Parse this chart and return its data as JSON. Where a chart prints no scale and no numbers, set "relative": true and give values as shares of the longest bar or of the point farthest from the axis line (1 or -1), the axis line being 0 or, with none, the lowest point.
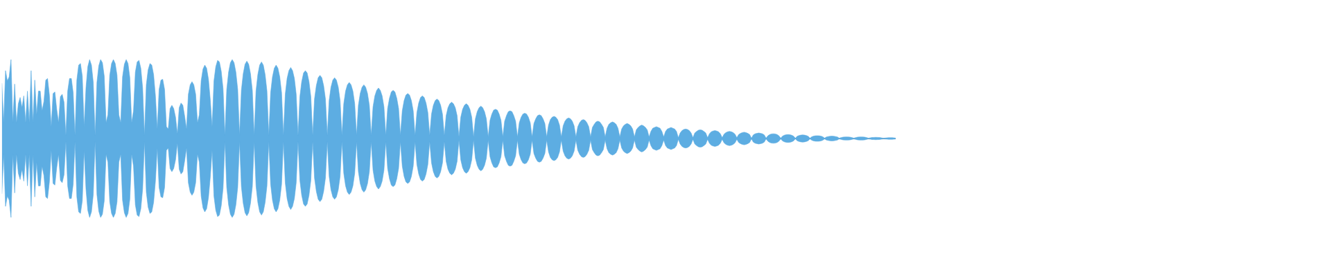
{
  "chart_data": {
    "type": "area",
    "relative": true,
    "categories": [
      null,
      null,
      null,
      null,
      null,
      null,
      null,
      null,
      null,
      null,
      null,
      null,
      null,
      null,
      null,
      null,
      null,
      null,
      null,
      null,
      null,
      null,
      null,
      null,
      null,
      null,
      null,
      null,
      null,
      null,
      null,
      null,
      null,
      null,
      null,
      null,
      null,
      null,
      null,
      null,
      null,
      null,
      null,
      null,
      null,
      null,
      null,
      null,
      null,
      null,
      null,
      null,
      null,
      null,
      null,
      null,
      null,
      null,
      null,
      null,
      null,
      null,
      null,
      null,
      null,
      null,
      null,
      null,
      null,
      null,
      null,
      null,
      null,
      null,
      null,
      null,
      null,
      null,
      null,
      null,
      null,
      null,
      null,
      null,
      null,
      null,
      null,
      null,
      null,
      null,
      null,
      null,
      null,
      null,
      null,
      null,
      null,
      null,
      null,
      null,
      null,
      null,
      null,
      null,
      null,
      null,
      null,
      null,
      null,
      null,
      null,
      null,
      null,
      null,
      null,
      null,
      null,
      null,
      null,
      null,
      null,
      null,
      null,
      null,
      null,
      null,
      null,
      null,
      null,
      null,
      null,
      null,
      null,
      null,
      null,
      null,
      null,
      null,
      null,
      null,
      null,
      null,
      null,
      null,
      null,
      null,
      null,
      null,
      null,
      null,
      null,
      null,
      null,
      null,
      null,
      null,
      null,
      null,
      null,
      null,
      null,
      null,
      null,
      null,
      null,
      null,
      null,
      null,
      null,
      null,
      null,
      null,
      null,
      null,
      null,
      null,
      null,
      null,
      null,
      null,
      null,
      null,
      null,
      null,
      null,
      null,
      null,
      null,
      null,
      null,
      null,
      null,
      null,
      null,
      null,
      null,
      null,
      null,
      null,
      null,
      null,
      null,
      null,
      null,
      null,
      null,
      null,
      null,
      null,
      null,
      null,
      null,
      null,
      null,
      null,
      null,
      null,
      null,
      null,
      null,
      null,
      null,
      null,
      null,
      null,
      null,
      null,
      null,
      null,
      null,
      null,
      null,
      null,
      null,
      null,
      null,
      null,
      null,
      null,
      null,
      null,
      null,
      null,
      null,
      null,
      null,
      null,
      null,
      null,
      null,
      null,
      null,
      null,
      null,
      null,
      null,
      null,
      null,
      null,
      null,
      null,
      null,
      null,
      null,
      null,
      null,
      null,
      null,
      null,
      null,
      null,
      null,
      null,
      null,
      null,
      null,
      null,
      null,
      null,
      null,
      null,
      null,
      null,
      null,
      null,
      null,
      null,
      null,
      null,
      null,
      null,
      null,
      null,
      null,
      null,
      null,
      null,
      null,
      null,
      null,
      null,
      null,
      null,
      null,
      null,
      null,
      null,
      null,
      null,
      null,
      null,
      null,
      null,
      null,
      null,
      null,
      null,
      null,
      null,
      null,
      null,
      null,
      null,
      null,
      null,
      null,
      null,
      null,
      null,
      null,
      null,
      null,
      null,
      null,
      null,
      null,
      null,
      null,
      null,
      null,
      null,
      null,
      null,
      null,
      null,
      null,
      null,
      null,
      null,
      null,
      null,
      null,
      null,
      null,
      null,
      null,
      null,
      null,
      null,
      null,
      null,
      null,
      null,
      null,
      null,
      null,
      null,
      null,
      null,
      null,
      null,
      null,
      null,
      null,
      null,
      null,
      null,
      null,
      null,
      null,
      null,
      null,
      null,
      null,
      null,
      null,
      null,
      null,
      null,
      null,
      null,
      null,
      null,
      null,
      null,
      null,
      null,
      null,
      null,
      null,
      null,
      null,
      null,
      null,
      null,
      null,
      null,
      null,
      null,
      null,
      null,
      null,
      null,
      null,
      null,
      null,
      null,
      null,
      null,
      null,
      null,
      null,
      null,
      null,
      null,
      null,
      null,
      null,
      null,
      null,
      null,
      null,
      null,
      null,
      null,
      null,
      null,
      null,
      null,
      null,
      null,
      null,
      null,
      null,
      null,
      null,
      null,
      null,
      null,
      null,
      null,
      null,
      null,
      null,
      null,
      null,
      null,
      null,
      null,
      null,
      null,
      null,
      null,
      null,
      null,
      null,
      null,
      null,
      null,
      null,
      null,
      null,
      null,
      null,
      null,
      null,
      null,
      null,
      null,
      null,
      null,
      null,
      null,
      null,
      null,
      null,
      null,
      null,
      null,
      null
    ],
    "series": [
      {
        "color": "#5dade2",
        "values": [
          0.7,
          0.2,
          0.86,
          0.73,
          0.78,
          1.0,
          0.2,
          0.69,
          0.2,
          0.44,
          0.52,
          0.39,
          0.54,
          0.2,
          0.6,
          0.2,
          0.86,
          0.2,
          0.74,
          0.3,
          0.6,
          0.6,
          0.35,
          0.47,
          0.74,
          0.76,
          0.55,
          0.15,
          0.57,
          0.59,
          0.37,
          0.2,
          0.53,
          0.56,
          0.46,
          0.04,
          0.6,
          0.76,
          0.76,
          0.58,
          0.04,
          0.74,
          0.93,
          0.95,
          0.79,
          0.15,
          0.64,
          0.91,
          1.0,
          0.93,
          0.71,
          0.04,
          0.71,
          0.92,
          1.0,
          0.96,
          0.79,
          0.2,
          0.3,
          0.8,
          0.95,
          1.0,
          0.95,
          0.8,
          0.3,
          0.2,
          0.78,
          0.94,
          1.0,
          0.95,
          0.77,
          0.2,
          0.35,
          0.84,
          0.97,
          0.99,
          0.89,
          0.64,
          0.04,
          0.68,
          0.87,
          0.95,
          0.93,
          0.81,
          0.54,
          0.12,
          0.62,
          0.74,
          0.75,
          0.62,
          0.15,
          0.12,
          0.38,
          0.42,
          0.38,
          0.27,
          0.06,
          0.39,
          0.45,
          0.42,
          0.28,
          0.12,
          0.56,
          0.68,
          0.72,
          0.68,
          0.56,
          0.2,
          0.3,
          0.73,
          0.88,
          0.93,
          0.89,
          0.75,
          0.49,
          0.15,
          0.73,
          0.91,
          0.99,
          0.97,
          0.85,
          0.63,
          0.04,
          0.62,
          0.84,
          0.96,
          1.0,
          0.96,
          0.84,
          0.62,
          0.04,
          0.61,
          0.82,
          0.94,
          0.98,
          0.94,
          0.82,
          0.61,
          0.04,
          0.6,
          0.81,
          0.93,
          0.97,
          0.93,
          0.81,
          0.6,
          0.04,
          0.58,
          0.78,
          0.89,
          0.93,
          0.89,
          0.78,
          0.58,
          0.04,
          0.56,
          0.76,
          0.86,
          0.9,
          0.86,
          0.76,
          0.56,
          0.04,
          0.53,
          0.72,
          0.83,
          0.86,
          0.83,
          0.72,
          0.53,
          0.04,
          0.5,
          0.67,
          0.77,
          0.8,
          0.77,
          0.67,
          0.5,
          0.04,
          0.48,
          0.65,
          0.74,
          0.77,
          0.74,
          0.65,
          0.48,
          0.04,
          0.44,
          0.6,
          0.68,
          0.71,
          0.68,
          0.6,
          0.44,
          0.04,
          0.42,
          0.57,
          0.65,
          0.68,
          0.65,
          0.57,
          0.42,
          0.04,
          0.4,
          0.54,
          0.61,
          0.64,
          0.61,
          0.54,
          0.4,
          0.04,
          0.38,
          0.51,
          0.59,
          0.61,
          0.59,
          0.51,
          0.38,
          0.04,
          0.35,
          0.48,
          0.55,
          0.57,
          0.55,
          0.48,
          0.35,
          0.04,
          0.33,
          0.45,
          0.52,
          0.54,
          0.52,
          0.45,
          0.33,
          0.04,
          0.31,
          0.42,
          0.48,
          0.5,
          0.48,
          0.42,
          0.31,
          0.04,
          0.29,
          0.39,
          0.44,
          0.46,
          0.44,
          0.39,
          0.29,
          0.02,
          0.27,
          0.37,
          0.42,
          0.44,
          0.42,
          0.37,
          0.27,
          0.02,
          0.25,
          0.34,
          0.39,
          0.41,
          0.39,
          0.34,
          0.25,
          0.02,
          0.23,
          0.31,
          0.36,
          0.37,
          0.36,
          0.31,
          0.23,
          0.02,
          0.22,
          0.29,
          0.34,
          0.35,
          0.34,
          0.29,
          0.22,
          0.02,
          0.2,
          0.27,
          0.31,
          0.32,
          0.31,
          0.27,
          0.2,
          0.02,
          0.19,
          0.25,
          0.29,
          0.3,
          0.29,
          0.25,
          0.19,
          0.02,
          0.17,
          0.24,
          0.27,
          0.28,
          0.27,
          0.24,
          0.17,
          0.02,
          0.16,
          0.22,
          0.25,
          0.26,
          0.25,
          0.22,
          0.16,
          0.02,
          0.15,
          0.2,
          0.23,
          0.24,
          0.23,
          0.2,
          0.15,
          0.02,
          0.14,
          0.18,
          0.21,
          0.22,
          0.21,
          0.18,
          0.14,
          0.02,
          0.13,
          0.18,
          0.2,
          0.21,
          0.2,
          0.18,
          0.13,
          0.02,
          0.12,
          0.16,
          0.18,
          0.19,
          0.18,
          0.16,
          0.12,
          0.02,
          0.11,
          0.14,
          0.16,
          0.17,
          0.16,
          0.14,
          0.11,
          0.02,
          0.09,
          0.13,
          0.14,
          0.15,
          0.14,
          0.13,
          0.09,
          0.02,
          0.09,
          0.12,
          0.13,
          0.14,
          0.13,
          0.12,
          0.09,
          0.01,
          0.07,
          0.1,
          0.115,
          0.12,
          0.115,
          0.1,
          0.07,
          0.01,
          0.07,
          0.09,
          0.105,
          0.11,
          0.105,
          0.09,
          0.07,
          0.01,
          0.06,
          0.085,
          0.095,
          0.1,
          0.095,
          0.085,
          0.06,
          0.01,
          0.055,
          0.075,
          0.085,
          0.09,
          0.085,
          0.075,
          0.055,
          0.01,
          0.05,
          0.065,
          0.075,
          0.08,
          0.075,
          0.065,
          0.05,
          0.005,
          0.045,
          0.06,
          0.065,
          0.07,
          0.065,
          0.06,
          0.045,
          0.005,
          0.035,
          0.05,
          0.058,
          0.06,
          0.058,
          0.05,
          0.035,
          0.005,
          0.03,
          0.042,
          0.048,
          0.05,
          0.048,
          0.042,
          0.03,
          0.005,
          0.028,
          0.038,
          0.043,
          0.045,
          0.043,
          0.038,
          0.028,
          0.005,
          0.022,
          0.03,
          0.034,
          0.035,
          0.034,
          0.03,
          0.022,
          0.005,
          0.019,
          0.025,
          0.029,
          0.03,
          0.029,
          0.025,
          0.019,
          0.005,
          0.012,
          0.017,
          0.019,
          0.02,
          0.019,
          0.017,
          0.012,
          0.005,
          0.012,
          0.017,
          0.019,
          0.02,
          0.019,
          0.017,
          0.012,
          0.005,
          0.009,
          0.013,
          0.014,
          0.015,
          0.014,
          0.013,
          0.009,
          0.005,
          0.006,
          0.008,
          0.01,
          0.01,
          0.01,
          0.008,
          0.005
        ]
      },
      {
        "color": "#5dade2",
        "values": [
          -0.7,
          -0.2,
          -0.86,
          -0.73,
          -0.78,
          -1.0,
          -0.2,
          -0.69,
          -0.2,
          -0.44,
          -0.52,
          -0.39,
          -0.54,
          -0.2,
          -0.6,
          -0.2,
          -0.86,
          -0.2,
          -0.74,
          -0.3,
          -0.6,
          -0.6,
          -0.35,
          -0.47,
          -0.74,
          -0.76,
          -0.55,
          -0.15,
          -0.57,
          -0.59,
          -0.37,
          -0.2,
          -0.53,
          -0.56,
          -0.46,
          -0.04,
          -0.6,
          -0.76,
          -0.76,
          -0.58,
          -0.04,
          -0.74,
          -0.93,
          -0.95,
          -0.79,
          -0.15,
          -0.64,
          -0.91,
          -1.0,
          -0.93,
          -0.71,
          -0.04,
          -0.71,
          -0.92,
          -1.0,
          -0.96,
          -0.79,
          -0.2,
          -0.3,
          -0.8,
          -0.95,
          -1.0,
          -0.95,
          -0.8,
          -0.3,
          -0.2,
          -0.78,
          -0.94,
          -1.0,
          -0.95,
          -0.77,
          -0.2,
          -0.35,
          -0.84,
          -0.97,
          -0.99,
          -0.89,
          -0.64,
          -0.04,
          -0.68,
          -0.87,
          -0.95,
          -0.93,
          -0.81,
          -0.54,
          -0.12,
          -0.62,
          -0.74,
          -0.75,
          -0.62,
          -0.15,
          -0.12,
          -0.38,
          -0.42,
          -0.38,
          -0.27,
          -0.06,
          -0.39,
          -0.45,
          -0.42,
          -0.28,
          -0.12,
          -0.56,
          -0.68,
          -0.72,
          -0.68,
          -0.56,
          -0.2,
          -0.3,
          -0.73,
          -0.88,
          -0.93,
          -0.89,
          -0.75,
          -0.49,
          -0.15,
          -0.73,
          -0.91,
          -0.99,
          -0.97,
          -0.85,
          -0.63,
          -0.04,
          -0.62,
          -0.84,
          -0.96,
          -1.0,
          -0.96,
          -0.84,
          -0.62,
          -0.04,
          -0.61,
          -0.82,
          -0.94,
          -0.98,
          -0.94,
          -0.82,
          -0.61,
          -0.04,
          -0.6,
          -0.81,
          -0.93,
          -0.97,
          -0.93,
          -0.81,
          -0.6,
          -0.04,
          -0.58,
          -0.78,
          -0.89,
          -0.93,
          -0.89,
          -0.78,
          -0.58,
          -0.04,
          -0.56,
          -0.76,
          -0.86,
          -0.9,
          -0.86,
          -0.76,
          -0.56,
          -0.04,
          -0.53,
          -0.72,
          -0.83,
          -0.86,
          -0.83,
          -0.72,
          -0.53,
          -0.04,
          -0.5,
          -0.67,
          -0.77,
          -0.8,
          -0.77,
          -0.67,
          -0.5,
          -0.04,
          -0.48,
          -0.65,
          -0.74,
          -0.77,
          -0.74,
          -0.65,
          -0.48,
          -0.04,
          -0.44,
          -0.6,
          -0.68,
          -0.71,
          -0.68,
          -0.6,
          -0.44,
          -0.04,
          -0.42,
          -0.57,
          -0.65,
          -0.68,
          -0.65,
          -0.57,
          -0.42,
          -0.04,
          -0.4,
          -0.54,
          -0.61,
          -0.64,
          -0.61,
          -0.54,
          -0.4,
          -0.04,
          -0.38,
          -0.51,
          -0.59,
          -0.61,
          -0.59,
          -0.51,
          -0.38,
          -0.04,
          -0.35,
          -0.48,
          -0.55,
          -0.57,
          -0.55,
          -0.48,
          -0.35,
          -0.04,
          -0.33,
          -0.45,
          -0.52,
          -0.54,
          -0.52,
          -0.45,
          -0.33,
          -0.04,
          -0.31,
          -0.42,
          -0.48,
          -0.5,
          -0.48,
          -0.42,
          -0.31,
          -0.04,
          -0.29,
          -0.39,
          -0.44,
          -0.46,
          -0.44,
          -0.39,
          -0.29,
          -0.02,
          -0.27,
          -0.37,
          -0.42,
          -0.44,
          -0.42,
          -0.37,
          -0.27,
          -0.02,
          -0.25,
          -0.34,
          -0.39,
          -0.41,
          -0.39,
          -0.34,
          -0.25,
          -0.02,
          -0.23,
          -0.31,
          -0.36,
          -0.37,
          -0.36,
          -0.31,
          -0.23,
          -0.02,
          -0.22,
          -0.29,
          -0.34,
          -0.35,
          -0.34,
          -0.29,
          -0.22,
          -0.02,
          -0.2,
          -0.27,
          -0.31,
          -0.32,
          -0.31,
          -0.27,
          -0.2,
          -0.02,
          -0.19,
          -0.25,
          -0.29,
          -0.3,
          -0.29,
          -0.25,
          -0.19,
          -0.02,
          -0.17,
          -0.24,
          -0.27,
          -0.28,
          -0.27,
          -0.24,
          -0.17,
          -0.02,
          -0.16,
          -0.22,
          -0.25,
          -0.26,
          -0.25,
          -0.22,
          -0.16,
          -0.02,
          -0.15,
          -0.2,
          -0.23,
          -0.24,
          -0.23,
          -0.2,
          -0.15,
          -0.02,
          -0.14,
          -0.18,
          -0.21,
          -0.22,
          -0.21,
          -0.18,
          -0.14,
          -0.02,
          -0.13,
          -0.18,
          -0.2,
          -0.21,
          -0.2,
          -0.18,
          -0.13,
          -0.02,
          -0.12,
          -0.16,
          -0.18,
          -0.19,
          -0.18,
          -0.16,
          -0.12,
          -0.02,
          -0.11,
          -0.14,
          -0.16,
          -0.17,
          -0.16,
          -0.14,
          -0.11,
          -0.02,
          -0.09,
          -0.13,
          -0.14,
          -0.15,
          -0.14,
          -0.13,
          -0.09,
          -0.02,
          -0.09,
          -0.12,
          -0.13,
          -0.14,
          -0.13,
          -0.12,
          -0.09,
          -0.01,
          -0.07,
          -0.1,
          -0.115,
          -0.12,
          -0.115,
          -0.1,
          -0.07,
          -0.01,
          -0.07,
          -0.09,
          -0.105,
          -0.11,
          -0.105,
          -0.09,
          -0.07,
          -0.01,
          -0.06,
          -0.085,
          -0.095,
          -0.1,
          -0.095,
          -0.085,
          -0.06,
          -0.01,
          -0.055,
          -0.075,
          -0.085,
          -0.09,
          -0.085,
          -0.075,
          -0.055,
          -0.01,
          -0.05,
          -0.065,
          -0.075,
          -0.08,
          -0.075,
          -0.065,
          -0.05,
          -0.005,
          -0.045,
          -0.06,
          -0.065,
          -0.07,
          -0.065,
          -0.06,
          -0.045,
          -0.005,
          -0.035,
          -0.05,
          -0.058,
          -0.06,
          -0.058,
          -0.05,
          -0.035,
          -0.005,
          -0.03,
          -0.042,
          -0.048,
          -0.05,
          -0.048,
          -0.042,
          -0.03,
          -0.005,
          -0.028,
          -0.038,
          -0.043,
          -0.045,
          -0.043,
          -0.038,
          -0.028,
          -0.005,
          -0.022,
          -0.03,
          -0.034,
          -0.035,
          -0.034,
          -0.03,
          -0.022,
          -0.005,
          -0.019,
          -0.025,
          -0.029,
          -0.03,
          -0.029,
          -0.025,
          -0.019,
          -0.005,
          -0.012,
          -0.017,
          -0.019,
          -0.02,
          -0.019,
          -0.017,
          -0.012,
          -0.005,
          -0.012,
          -0.017,
          -0.019,
          -0.02,
          -0.019,
          -0.017,
          -0.012,
          -0.005,
          -0.009,
          -0.013,
          -0.014,
          -0.015,
          -0.014,
          -0.013,
          -0.009,
          -0.005,
          -0.006,
          -0.008,
          -0.01,
          -0.01,
          -0.01,
          -0.008,
          -0.005
        ]
      }
    ]
  }
}
